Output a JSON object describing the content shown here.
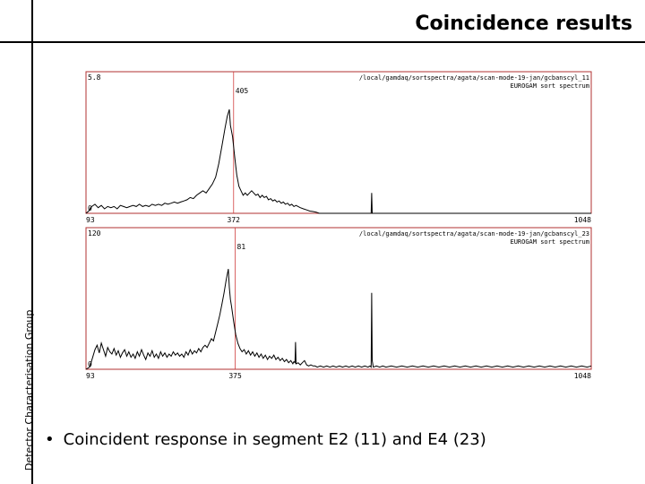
{
  "slide": {
    "title": "Coincidence results",
    "side_label": "Detector Characterisation Group",
    "bullet": "Coincident response in segment E2 (11) and E4 (23)"
  },
  "colors": {
    "frame": "#b03030",
    "trace": "#000000",
    "marker": "#d04040"
  },
  "chart_data": [
    {
      "type": "line",
      "path_label": "/local/gamdaq/sortspectra/agata/scan-mode-19-jan/gcbanscyl_11",
      "subtitle": "EUROGAM sort spectrum",
      "ylim": [
        0,
        5.8
      ],
      "xlim": [
        93,
        1048
      ],
      "y_top_label": "5.8",
      "y_bottom_label": "0",
      "x_tick_labels": [
        "93",
        "372",
        "1048"
      ],
      "marker_x": 372,
      "marker_label": "405",
      "marker_color": "#d04040",
      "points": [
        [
          93,
          0.0
        ],
        [
          98,
          0.1
        ],
        [
          104,
          0.3
        ],
        [
          110,
          0.4
        ],
        [
          116,
          0.25
        ],
        [
          122,
          0.35
        ],
        [
          128,
          0.2
        ],
        [
          134,
          0.3
        ],
        [
          140,
          0.25
        ],
        [
          146,
          0.3
        ],
        [
          152,
          0.2
        ],
        [
          158,
          0.35
        ],
        [
          164,
          0.3
        ],
        [
          170,
          0.25
        ],
        [
          176,
          0.3
        ],
        [
          182,
          0.35
        ],
        [
          188,
          0.3
        ],
        [
          194,
          0.4
        ],
        [
          200,
          0.3
        ],
        [
          206,
          0.35
        ],
        [
          212,
          0.3
        ],
        [
          218,
          0.4
        ],
        [
          224,
          0.35
        ],
        [
          230,
          0.4
        ],
        [
          236,
          0.35
        ],
        [
          242,
          0.45
        ],
        [
          248,
          0.4
        ],
        [
          254,
          0.45
        ],
        [
          260,
          0.5
        ],
        [
          266,
          0.45
        ],
        [
          272,
          0.5
        ],
        [
          278,
          0.55
        ],
        [
          284,
          0.6
        ],
        [
          290,
          0.7
        ],
        [
          296,
          0.65
        ],
        [
          302,
          0.8
        ],
        [
          308,
          0.9
        ],
        [
          314,
          1.0
        ],
        [
          320,
          0.9
        ],
        [
          326,
          1.1
        ],
        [
          332,
          1.3
        ],
        [
          338,
          1.6
        ],
        [
          344,
          2.2
        ],
        [
          350,
          3.0
        ],
        [
          356,
          3.8
        ],
        [
          360,
          4.3
        ],
        [
          364,
          4.6
        ],
        [
          366,
          3.9
        ],
        [
          370,
          3.4
        ],
        [
          374,
          2.5
        ],
        [
          378,
          1.7
        ],
        [
          382,
          1.2
        ],
        [
          386,
          1.0
        ],
        [
          390,
          0.8
        ],
        [
          394,
          0.9
        ],
        [
          398,
          0.8
        ],
        [
          402,
          0.9
        ],
        [
          406,
          1.0
        ],
        [
          410,
          0.9
        ],
        [
          414,
          0.8
        ],
        [
          418,
          0.85
        ],
        [
          422,
          0.7
        ],
        [
          426,
          0.8
        ],
        [
          430,
          0.7
        ],
        [
          434,
          0.75
        ],
        [
          438,
          0.6
        ],
        [
          442,
          0.65
        ],
        [
          446,
          0.55
        ],
        [
          450,
          0.6
        ],
        [
          454,
          0.5
        ],
        [
          458,
          0.55
        ],
        [
          462,
          0.45
        ],
        [
          466,
          0.5
        ],
        [
          470,
          0.4
        ],
        [
          474,
          0.45
        ],
        [
          478,
          0.35
        ],
        [
          482,
          0.4
        ],
        [
          486,
          0.3
        ],
        [
          490,
          0.35
        ],
        [
          494,
          0.3
        ],
        [
          498,
          0.25
        ],
        [
          504,
          0.2
        ],
        [
          510,
          0.15
        ],
        [
          516,
          0.1
        ],
        [
          522,
          0.08
        ],
        [
          528,
          0.05
        ],
        [
          534,
          0.0
        ],
        [
          540,
          0.0
        ],
        [
          620,
          0.0
        ],
        [
          630,
          0.0
        ],
        [
          632,
          0.0
        ],
        [
          633,
          0.9
        ],
        [
          634,
          0.0
        ],
        [
          640,
          0.0
        ],
        [
          700,
          0.0
        ],
        [
          800,
          0.0
        ],
        [
          900,
          0.0
        ],
        [
          1000,
          0.0
        ],
        [
          1048,
          0.0
        ]
      ]
    },
    {
      "type": "line",
      "path_label": "/local/gamdaq/sortspectra/agata/scan-mode-19-jan/gcbanscyl_23",
      "subtitle": "EUROGAM sort spectrum",
      "ylim": [
        0,
        120
      ],
      "xlim": [
        93,
        1048
      ],
      "y_top_label": "120",
      "y_bottom_label": "0",
      "x_tick_labels": [
        "93",
        "375",
        "1048"
      ],
      "marker_x": 375,
      "marker_label": "81",
      "marker_color": "#d04040",
      "points": [
        [
          93,
          0
        ],
        [
          100,
          2
        ],
        [
          105,
          10
        ],
        [
          110,
          18
        ],
        [
          114,
          22
        ],
        [
          118,
          15
        ],
        [
          122,
          24
        ],
        [
          126,
          18
        ],
        [
          130,
          12
        ],
        [
          134,
          20
        ],
        [
          138,
          16
        ],
        [
          142,
          14
        ],
        [
          146,
          19
        ],
        [
          150,
          13
        ],
        [
          154,
          17
        ],
        [
          158,
          11
        ],
        [
          162,
          15
        ],
        [
          166,
          18
        ],
        [
          170,
          12
        ],
        [
          174,
          16
        ],
        [
          178,
          11
        ],
        [
          182,
          14
        ],
        [
          186,
          10
        ],
        [
          190,
          16
        ],
        [
          194,
          12
        ],
        [
          198,
          18
        ],
        [
          202,
          13
        ],
        [
          206,
          9
        ],
        [
          210,
          15
        ],
        [
          214,
          12
        ],
        [
          218,
          17
        ],
        [
          222,
          11
        ],
        [
          226,
          14
        ],
        [
          230,
          10
        ],
        [
          234,
          16
        ],
        [
          238,
          12
        ],
        [
          242,
          15
        ],
        [
          246,
          11
        ],
        [
          250,
          14
        ],
        [
          254,
          12
        ],
        [
          258,
          16
        ],
        [
          262,
          13
        ],
        [
          266,
          15
        ],
        [
          270,
          12
        ],
        [
          274,
          14
        ],
        [
          278,
          11
        ],
        [
          282,
          16
        ],
        [
          286,
          13
        ],
        [
          290,
          18
        ],
        [
          294,
          14
        ],
        [
          298,
          17
        ],
        [
          302,
          15
        ],
        [
          306,
          19
        ],
        [
          310,
          16
        ],
        [
          314,
          20
        ],
        [
          318,
          22
        ],
        [
          322,
          20
        ],
        [
          326,
          24
        ],
        [
          330,
          28
        ],
        [
          334,
          26
        ],
        [
          338,
          34
        ],
        [
          342,
          42
        ],
        [
          346,
          50
        ],
        [
          350,
          60
        ],
        [
          354,
          70
        ],
        [
          358,
          82
        ],
        [
          362,
          92
        ],
        [
          364,
          75
        ],
        [
          366,
          64
        ],
        [
          368,
          58
        ],
        [
          372,
          44
        ],
        [
          376,
          32
        ],
        [
          380,
          24
        ],
        [
          384,
          19
        ],
        [
          388,
          16
        ],
        [
          392,
          18
        ],
        [
          396,
          14
        ],
        [
          400,
          17
        ],
        [
          404,
          13
        ],
        [
          408,
          16
        ],
        [
          412,
          12
        ],
        [
          416,
          15
        ],
        [
          420,
          11
        ],
        [
          424,
          14
        ],
        [
          428,
          10
        ],
        [
          432,
          13
        ],
        [
          436,
          9
        ],
        [
          440,
          12
        ],
        [
          444,
          10
        ],
        [
          448,
          13
        ],
        [
          452,
          9
        ],
        [
          456,
          11
        ],
        [
          460,
          8
        ],
        [
          464,
          10
        ],
        [
          468,
          7
        ],
        [
          472,
          9
        ],
        [
          476,
          6
        ],
        [
          480,
          8
        ],
        [
          484,
          5
        ],
        [
          486,
          7
        ],
        [
          488,
          6
        ],
        [
          489,
          25
        ],
        [
          490,
          5
        ],
        [
          494,
          6
        ],
        [
          498,
          4
        ],
        [
          502,
          6
        ],
        [
          506,
          8
        ],
        [
          510,
          4
        ],
        [
          514,
          3
        ],
        [
          518,
          4
        ],
        [
          522,
          3
        ],
        [
          526,
          3
        ],
        [
          530,
          2
        ],
        [
          536,
          3
        ],
        [
          542,
          2
        ],
        [
          548,
          3
        ],
        [
          554,
          2
        ],
        [
          560,
          3
        ],
        [
          566,
          2
        ],
        [
          572,
          3
        ],
        [
          578,
          2
        ],
        [
          584,
          3
        ],
        [
          590,
          2
        ],
        [
          596,
          3
        ],
        [
          602,
          2
        ],
        [
          608,
          3
        ],
        [
          614,
          2
        ],
        [
          620,
          3
        ],
        [
          626,
          2
        ],
        [
          630,
          3
        ],
        [
          632,
          2
        ],
        [
          633,
          70
        ],
        [
          634,
          8
        ],
        [
          636,
          2
        ],
        [
          642,
          3
        ],
        [
          648,
          2
        ],
        [
          654,
          3
        ],
        [
          660,
          2
        ],
        [
          670,
          3
        ],
        [
          680,
          2
        ],
        [
          690,
          3
        ],
        [
          700,
          2
        ],
        [
          710,
          3
        ],
        [
          720,
          2
        ],
        [
          730,
          3
        ],
        [
          740,
          2
        ],
        [
          750,
          3
        ],
        [
          760,
          2
        ],
        [
          770,
          3
        ],
        [
          780,
          2
        ],
        [
          790,
          3
        ],
        [
          800,
          2
        ],
        [
          810,
          3
        ],
        [
          820,
          2
        ],
        [
          830,
          3
        ],
        [
          840,
          2
        ],
        [
          850,
          3
        ],
        [
          860,
          2
        ],
        [
          870,
          3
        ],
        [
          880,
          2
        ],
        [
          890,
          3
        ],
        [
          900,
          2
        ],
        [
          910,
          3
        ],
        [
          920,
          2
        ],
        [
          930,
          3
        ],
        [
          940,
          2
        ],
        [
          950,
          3
        ],
        [
          960,
          2
        ],
        [
          970,
          3
        ],
        [
          980,
          2
        ],
        [
          990,
          3
        ],
        [
          1000,
          2
        ],
        [
          1010,
          3
        ],
        [
          1020,
          2
        ],
        [
          1030,
          3
        ],
        [
          1040,
          2
        ],
        [
          1048,
          3
        ]
      ]
    }
  ]
}
